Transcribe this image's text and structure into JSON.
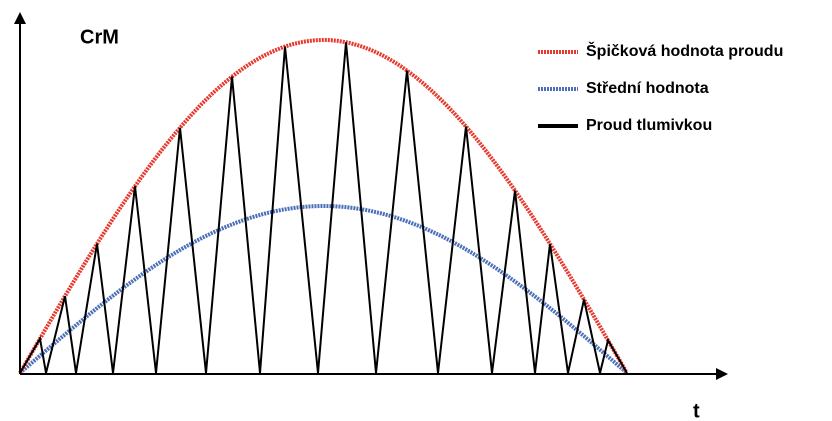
{
  "diagram": {
    "y_axis_label": "CrM",
    "x_axis_label": "t",
    "legend": [
      {
        "label": "Špičková hodnota proudu",
        "color": "#e8382c"
      },
      {
        "label": "Střední hodnota",
        "color": "#4a6fb8"
      },
      {
        "label": "Proud tlumivkou",
        "color": "#000000"
      }
    ]
  }
}
